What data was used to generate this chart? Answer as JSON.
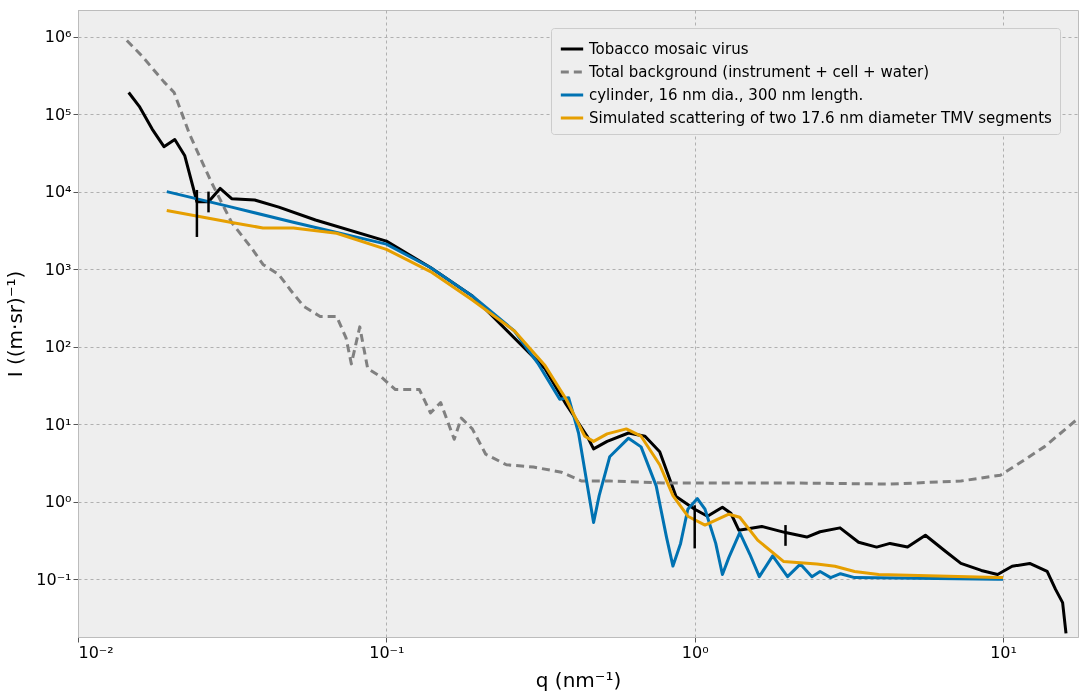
{
  "chart_data": {
    "type": "line",
    "xlabel": "q (nm⁻¹)",
    "ylabel": "I ((m·sr)⁻¹)",
    "log": "xy",
    "grid": true,
    "legend": "top right",
    "xlim": [
      0.01,
      17.5
    ],
    "ylim": [
      0.018,
      2200000
    ],
    "xticks": [
      {
        "value": 0.01,
        "label": "10⁻²"
      },
      {
        "value": 0.1,
        "label": "10⁻¹"
      },
      {
        "value": 1,
        "label": "10⁰"
      },
      {
        "value": 10,
        "label": "10¹"
      }
    ],
    "yticks": [
      {
        "value": 0.1,
        "label": "10⁻¹"
      },
      {
        "value": 1,
        "label": "10⁰"
      },
      {
        "value": 10,
        "label": "10¹"
      },
      {
        "value": 100,
        "label": "10²"
      },
      {
        "value": 1000,
        "label": "10³"
      },
      {
        "value": 10000,
        "label": "10⁴"
      },
      {
        "value": 100000,
        "label": "10⁵"
      },
      {
        "value": 1000000,
        "label": "10⁶"
      }
    ],
    "series": [
      {
        "name": "Tobacco mosaic virus",
        "color": "#000000",
        "line_style": "solid",
        "x": [
          0.0146,
          0.0158,
          0.0174,
          0.019,
          0.0206,
          0.0222,
          0.0243,
          0.0265,
          0.0289,
          0.0315,
          0.0374,
          0.0448,
          0.0589,
          0.1,
          0.139,
          0.19,
          0.26,
          0.327,
          0.383,
          0.448,
          0.47,
          0.52,
          0.61,
          0.69,
          0.77,
          0.87,
          1.0,
          1.1,
          1.23,
          1.31,
          1.39,
          1.65,
          1.97,
          2.31,
          2.55,
          2.96,
          3.4,
          3.89,
          4.3,
          4.9,
          5.6,
          6.5,
          7.3,
          8.5,
          9.6,
          10.7,
          12.2,
          13.9,
          14.8,
          15.6,
          16.0
        ],
        "values": [
          190000,
          126000,
          64000,
          38000,
          47000,
          29000,
          7400,
          7400,
          11000,
          8100,
          7800,
          6300,
          4300,
          2300,
          1050,
          450,
          null,
          52,
          18,
          7,
          4.8,
          6,
          7.7,
          7,
          4.4,
          1.17,
          0.8,
          0.65,
          0.85,
          0.71,
          0.43,
          0.48,
          0.4,
          0.35,
          0.41,
          0.46,
          0.3,
          0.26,
          0.29,
          0.26,
          0.37,
          0.23,
          0.16,
          0.13,
          0.115,
          0.147,
          0.16,
          0.126,
          0.074,
          0.05,
          0.02
        ],
        "errors": [
          null,
          null,
          null,
          null,
          null,
          null,
          [
            2600,
            10500
          ],
          [
            5400,
            10000
          ],
          null,
          null,
          null,
          null,
          null,
          null,
          null,
          null,
          null,
          null,
          null,
          null,
          null,
          null,
          null,
          null,
          null,
          null,
          [
            0.25,
            0.9
          ],
          null,
          null,
          null,
          null,
          null,
          [
            0.27,
            0.5
          ],
          null,
          null,
          null,
          null,
          null,
          null,
          null,
          null,
          null,
          null,
          null,
          null,
          null,
          null,
          null,
          null,
          null,
          null
        ]
      },
      {
        "name": "Total background (instrument + cell + water)",
        "color": "#808080",
        "line_style": "dashed",
        "x": [
          0.0144,
          0.0162,
          0.019,
          0.0205,
          0.023,
          0.027,
          0.0315,
          0.0368,
          0.0398,
          0.0448,
          0.049,
          0.054,
          0.061,
          0.069,
          0.074,
          0.077,
          0.082,
          0.087,
          0.096,
          0.107,
          0.128,
          0.139,
          0.15,
          0.166,
          0.175,
          0.19,
          0.21,
          0.245,
          0.3,
          0.37,
          0.43,
          0.53,
          0.79,
          1.97,
          4.3,
          7.3,
          9.8,
          11.1,
          13.6,
          17.5
        ],
        "values": [
          890000,
          550000,
          260000,
          190000,
          55000,
          13500,
          4000,
          1800,
          1150,
          850,
          530,
          330,
          245,
          245,
          130,
          60,
          180,
          52,
          41,
          28,
          28,
          14,
          19,
          6.4,
          12,
          8.7,
          4.1,
          3.0,
          2.8,
          2.4,
          1.85,
          1.85,
          1.75,
          1.75,
          1.69,
          1.85,
          2.2,
          3.0,
          5.1,
          11.8
        ]
      },
      {
        "name": "cylinder, 16 nm dia., 300 nm length.",
        "color": "#0072b2",
        "line_style": "solid",
        "x": [
          0.0194,
          0.0315,
          0.0503,
          0.1,
          0.139,
          0.19,
          0.26,
          0.31,
          0.365,
          0.39,
          0.42,
          0.45,
          0.47,
          0.49,
          0.53,
          0.61,
          0.67,
          0.75,
          0.81,
          0.85,
          0.9,
          0.95,
          1.02,
          1.08,
          1.17,
          1.23,
          1.29,
          1.4,
          1.51,
          1.62,
          1.79,
          2.0,
          2.2,
          2.4,
          2.55,
          2.76,
          2.97,
          3.3,
          9.6,
          10
        ],
        "values": [
          10000,
          6300,
          4000,
          2100,
          1050,
          450,
          160,
          61,
          21,
          22,
          7.7,
          1.5,
          0.54,
          1.2,
          3.8,
          6.6,
          5.1,
          1.6,
          0.35,
          0.148,
          0.29,
          0.8,
          1.1,
          0.8,
          0.29,
          0.115,
          0.19,
          0.4,
          0.21,
          0.108,
          0.2,
          0.108,
          0.157,
          0.108,
          0.126,
          0.105,
          0.118,
          0.105,
          0.1,
          0.1
        ]
      },
      {
        "name": "Simulated scattering of two 17.6 nm diameter TMV segments",
        "color": "#e69f00",
        "line_style": "solid",
        "x": [
          0.0194,
          0.0315,
          0.0398,
          0.05,
          0.069,
          0.1,
          0.139,
          0.19,
          0.26,
          0.327,
          0.383,
          0.44,
          0.47,
          0.52,
          0.6,
          0.67,
          0.77,
          0.85,
          0.95,
          1.08,
          1.29,
          1.4,
          1.6,
          1.94,
          2.49,
          2.85,
          3.3,
          3.95,
          9.6,
          10
        ],
        "values": [
          5700,
          4000,
          3400,
          3400,
          2900,
          1800,
          930,
          400,
          160,
          57,
          21,
          7,
          6,
          7.5,
          8.7,
          7,
          3.0,
          1.2,
          0.65,
          0.5,
          0.69,
          0.63,
          0.32,
          0.17,
          0.157,
          0.147,
          0.126,
          0.115,
          0.105,
          0.105
        ]
      }
    ]
  }
}
